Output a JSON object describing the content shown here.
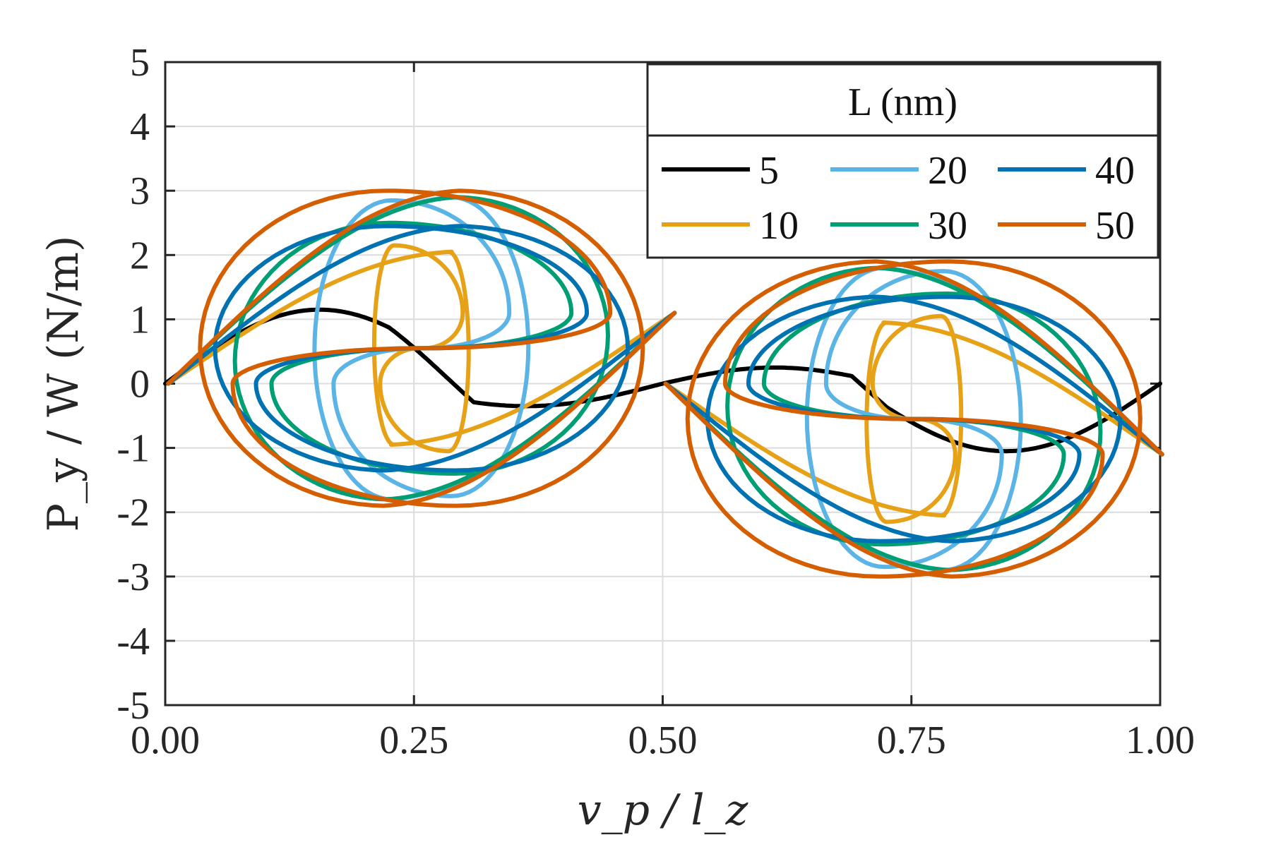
{
  "chart_data": {
    "type": "line",
    "title": "",
    "xlabel": "v_p / l_z",
    "ylabel": "P_y / W (N/m)",
    "xlim": [
      0.0,
      1.0
    ],
    "ylim": [
      -5,
      5
    ],
    "grid": true,
    "x_ticks": [
      0.0,
      0.25,
      0.5,
      0.75,
      1.0
    ],
    "x_tick_labels": [
      "0.00",
      "0.25",
      "0.50",
      "0.75",
      "1.00"
    ],
    "y_ticks": [
      5,
      4,
      3,
      2,
      1,
      0,
      -1,
      -2,
      -3,
      -4,
      -5
    ],
    "y_tick_labels": [
      "5",
      "4",
      "3",
      "2",
      "1",
      "0",
      "-1",
      "-2",
      "-3",
      "-4",
      "-5"
    ],
    "legend": {
      "title": "L (nm)",
      "placement": "top-right",
      "entries": [
        "5",
        "10",
        "20",
        "30",
        "40",
        "50"
      ]
    },
    "series": [
      {
        "name": "5",
        "color": "#000000",
        "shape": "sine",
        "amplitude": 1.15,
        "peak_x": 0.18,
        "valley_x": 0.4
      },
      {
        "name": "10",
        "color": "#E6A117",
        "shape": "hysteresis-loop",
        "outer_amplitude": 2.05,
        "inner_amplitude": 1.05,
        "loop_width": 0.05
      },
      {
        "name": "20",
        "color": "#5AB4E5",
        "shape": "hysteresis-loop",
        "outer_amplitude": 2.9,
        "inner_amplitude": 1.75,
        "loop_width": 0.11
      },
      {
        "name": "30",
        "color": "#009E73",
        "shape": "hysteresis-loop",
        "outer_amplitude": 2.9,
        "inner_amplitude": 1.4,
        "loop_width": 0.19
      },
      {
        "name": "40",
        "color": "#0072B2",
        "shape": "hysteresis-loop",
        "outer_amplitude": 2.45,
        "inner_amplitude": 1.35,
        "loop_width": 0.21
      },
      {
        "name": "50",
        "color": "#D55E00",
        "shape": "hysteresis-loop",
        "outer_amplitude": 3.0,
        "inner_amplitude": 1.9,
        "loop_width": 0.24
      }
    ]
  }
}
